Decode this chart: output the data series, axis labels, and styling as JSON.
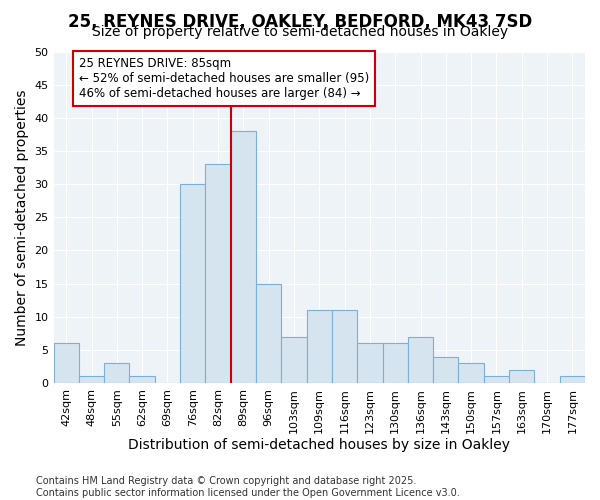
{
  "title": "25, REYNES DRIVE, OAKLEY, BEDFORD, MK43 7SD",
  "subtitle": "Size of property relative to semi-detached houses in Oakley",
  "xlabel": "Distribution of semi-detached houses by size in Oakley",
  "ylabel": "Number of semi-detached properties",
  "categories": [
    "42sqm",
    "48sqm",
    "55sqm",
    "62sqm",
    "69sqm",
    "76sqm",
    "82sqm",
    "89sqm",
    "96sqm",
    "103sqm",
    "109sqm",
    "116sqm",
    "123sqm",
    "130sqm",
    "136sqm",
    "143sqm",
    "150sqm",
    "157sqm",
    "163sqm",
    "170sqm",
    "177sqm"
  ],
  "values": [
    6,
    1,
    3,
    1,
    0,
    30,
    33,
    38,
    15,
    7,
    11,
    11,
    6,
    6,
    7,
    4,
    3,
    1,
    2,
    0,
    1
  ],
  "bar_color": "#d6e4f0",
  "bar_edge_color": "#7bafd4",
  "vline_color": "#cc0000",
  "vline_index": 6.5,
  "ylim": [
    0,
    50
  ],
  "yticks": [
    0,
    5,
    10,
    15,
    20,
    25,
    30,
    35,
    40,
    45,
    50
  ],
  "annotation_line1": "25 REYNES DRIVE: 85sqm",
  "annotation_line2": "← 52% of semi-detached houses are smaller (95)",
  "annotation_line3": "46% of semi-detached houses are larger (84) →",
  "annotation_box_color": "#cc0000",
  "plot_bg_color": "#eef3f8",
  "grid_color": "#ffffff",
  "footer_line1": "Contains HM Land Registry data © Crown copyright and database right 2025.",
  "footer_line2": "Contains public sector information licensed under the Open Government Licence v3.0.",
  "title_fontsize": 12,
  "subtitle_fontsize": 10,
  "axis_label_fontsize": 10,
  "tick_fontsize": 8,
  "annotation_fontsize": 8.5,
  "footer_fontsize": 7
}
